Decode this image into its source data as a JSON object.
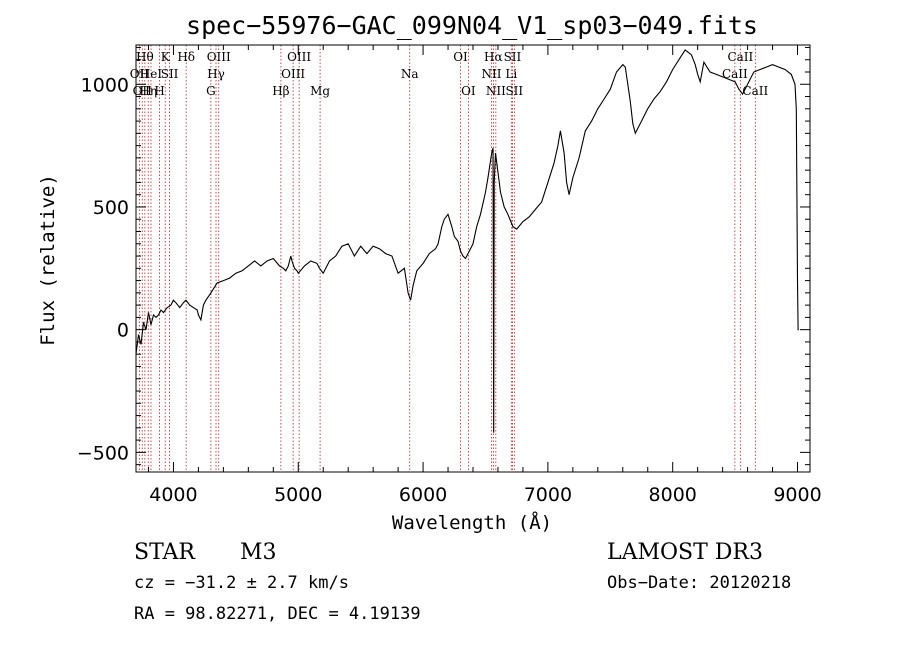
{
  "chart_data": {
    "type": "line",
    "title": "spec−55976−GAC_099N04_V1_sp03−049.fits",
    "xlabel": "Wavelength (Å)",
    "ylabel": "Flux (relative)",
    "xlim": [
      3700,
      9100
    ],
    "ylim": [
      -580,
      1160
    ],
    "x_ticks": [
      4000,
      5000,
      6000,
      7000,
      8000,
      9000
    ],
    "x_tick_labels": [
      "4000",
      "5000",
      "6000",
      "7000",
      "8000",
      "9000"
    ],
    "y_ticks": [
      -500,
      0,
      500,
      1000
    ],
    "y_tick_labels": [
      "−500",
      "0",
      "500",
      "1000"
    ],
    "grid": false,
    "series": [
      {
        "color": "#000000",
        "x": [
          3700,
          3720,
          3740,
          3760,
          3780,
          3800,
          3820,
          3840,
          3860,
          3880,
          3900,
          3920,
          3950,
          3980,
          4000,
          4020,
          4050,
          4080,
          4100,
          4130,
          4160,
          4190,
          4200,
          4220,
          4240,
          4260,
          4300,
          4350,
          4400,
          4450,
          4500,
          4550,
          4600,
          4650,
          4700,
          4750,
          4800,
          4850,
          4880,
          4900,
          4920,
          4940,
          4950,
          4970,
          4990,
          5000,
          5050,
          5100,
          5150,
          5170,
          5200,
          5250,
          5300,
          5350,
          5400,
          5450,
          5500,
          5550,
          5600,
          5650,
          5700,
          5750,
          5800,
          5850,
          5880,
          5900,
          5920,
          5950,
          6000,
          6050,
          6100,
          6120,
          6150,
          6170,
          6200,
          6230,
          6250,
          6280,
          6300,
          6320,
          6340,
          6360,
          6380,
          6400,
          6430,
          6460,
          6500,
          6520,
          6550,
          6560,
          6563,
          6566,
          6570,
          6580,
          6600,
          6620,
          6650,
          6680,
          6720,
          6750,
          6800,
          6850,
          6900,
          6950,
          7000,
          7050,
          7080,
          7100,
          7130,
          7150,
          7170,
          7200,
          7250,
          7300,
          7350,
          7400,
          7450,
          7500,
          7550,
          7600,
          7620,
          7640,
          7660,
          7680,
          7700,
          7750,
          7800,
          7850,
          7900,
          7950,
          8000,
          8050,
          8100,
          8150,
          8180,
          8200,
          8220,
          8250,
          8300,
          8350,
          8400,
          8450,
          8500,
          8530,
          8560,
          8600,
          8650,
          8700,
          8750,
          8800,
          8850,
          8900,
          8950,
          8980,
          8990,
          9000,
          9005,
          9010
        ],
        "y": [
          -100,
          -20,
          -60,
          30,
          0,
          70,
          20,
          60,
          50,
          60,
          80,
          70,
          90,
          100,
          120,
          110,
          90,
          110,
          120,
          100,
          90,
          80,
          60,
          40,
          100,
          120,
          150,
          190,
          200,
          210,
          230,
          240,
          260,
          280,
          260,
          280,
          290,
          260,
          250,
          240,
          260,
          300,
          280,
          250,
          240,
          230,
          260,
          280,
          270,
          250,
          230,
          280,
          300,
          340,
          350,
          300,
          340,
          310,
          340,
          330,
          310,
          300,
          230,
          250,
          150,
          120,
          180,
          240,
          270,
          310,
          330,
          350,
          420,
          450,
          470,
          420,
          380,
          360,
          320,
          300,
          290,
          310,
          330,
          350,
          420,
          470,
          560,
          620,
          720,
          740,
          300,
          -420,
          600,
          720,
          640,
          560,
          500,
          470,
          420,
          410,
          440,
          460,
          490,
          520,
          600,
          680,
          750,
          810,
          720,
          600,
          550,
          620,
          700,
          810,
          850,
          900,
          940,
          980,
          1050,
          1080,
          1070,
          1000,
          930,
          840,
          800,
          850,
          900,
          940,
          970,
          1010,
          1060,
          1100,
          1140,
          1120,
          1080,
          1040,
          1010,
          1090,
          1050,
          1040,
          1030,
          1020,
          1010,
          980,
          960,
          1000,
          1050,
          1060,
          1070,
          1080,
          1070,
          1060,
          1040,
          1000,
          900,
          200,
          0,
          0
        ]
      }
    ],
    "line_markers": [
      {
        "x": 3727,
        "label": "OII",
        "row": 2
      },
      {
        "x": 3750,
        "label": "OII",
        "row": 3
      },
      {
        "x": 3771,
        "label": "Hθ",
        "row": 1
      },
      {
        "x": 3798,
        "label": "Hη",
        "row": 3
      },
      {
        "x": 3820,
        "label": "HeI",
        "row": 2
      },
      {
        "x": 3889,
        "label": "H",
        "row": 3
      },
      {
        "x": 3934,
        "label": "K",
        "row": 1
      },
      {
        "x": 3969,
        "label": "SII",
        "row": 2
      },
      {
        "x": 4102,
        "label": "Hδ",
        "row": 1
      },
      {
        "x": 4300,
        "label": "G",
        "row": 3
      },
      {
        "x": 4341,
        "label": "Hγ",
        "row": 2
      },
      {
        "x": 4363,
        "label": "OIII",
        "row": 1
      },
      {
        "x": 4861,
        "label": "Hβ",
        "row": 3
      },
      {
        "x": 4959,
        "label": "OIII",
        "row": 2
      },
      {
        "x": 5007,
        "label": "OIII",
        "row": 1
      },
      {
        "x": 5175,
        "label": "Mg",
        "row": 3
      },
      {
        "x": 5893,
        "label": "Na",
        "row": 2
      },
      {
        "x": 6300,
        "label": "OI",
        "row": 1
      },
      {
        "x": 6363,
        "label": "OI",
        "row": 3
      },
      {
        "x": 6548,
        "label": "NII",
        "row": 2
      },
      {
        "x": 6563,
        "label": "Hα",
        "row": 1
      },
      {
        "x": 6583,
        "label": "NII",
        "row": 3
      },
      {
        "x": 6707,
        "label": "Li",
        "row": 2
      },
      {
        "x": 6716,
        "label": "SII",
        "row": 1
      },
      {
        "x": 6731,
        "label": "SII",
        "row": 3
      },
      {
        "x": 8498,
        "label": "CaII",
        "row": 2
      },
      {
        "x": 8542,
        "label": "CaII",
        "row": 1
      },
      {
        "x": 8662,
        "label": "CaII",
        "row": 3
      }
    ]
  },
  "info": {
    "object_class": "STAR",
    "subclass": "M3",
    "survey": "LAMOST DR3",
    "redshift": "cz = −31.2 ± 2.7 km/s",
    "obs_date": "Obs−Date: 20120218",
    "coords": "RA =  98.82271, DEC =   4.19139"
  },
  "colors": {
    "spectrum": "#000000",
    "marker_line": "#b22222",
    "axes": "#000000"
  }
}
